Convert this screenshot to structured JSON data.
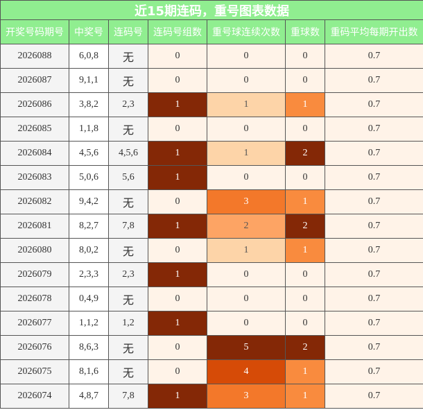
{
  "title": "近15期连码，重号图表数据",
  "table": {
    "headers": [
      "开奖号码期号",
      "中奖号",
      "连码号",
      "连码号组数",
      "重号球连续次数",
      "重球数",
      "重码平均每期开出数"
    ],
    "rows": [
      [
        "2026088",
        "6,0,8",
        "无",
        "0",
        "0",
        "0",
        "0.7"
      ],
      [
        "2026087",
        "9,1,1",
        "无",
        "0",
        "0",
        "0",
        "0.7"
      ],
      [
        "2026086",
        "3,8,2",
        "2,3",
        "1",
        "1",
        "1",
        "0.7"
      ],
      [
        "2026085",
        "1,1,8",
        "无",
        "0",
        "0",
        "0",
        "0.7"
      ],
      [
        "2026084",
        "4,5,6",
        "4,5,6",
        "1",
        "1",
        "2",
        "0.7"
      ],
      [
        "2026083",
        "5,0,6",
        "5,6",
        "1",
        "0",
        "0",
        "0.7"
      ],
      [
        "2026082",
        "9,4,2",
        "无",
        "0",
        "3",
        "1",
        "0.7"
      ],
      [
        "2026081",
        "8,2,7",
        "7,8",
        "1",
        "2",
        "2",
        "0.7"
      ],
      [
        "2026080",
        "8,0,2",
        "无",
        "0",
        "1",
        "1",
        "0.7"
      ],
      [
        "2026079",
        "2,3,3",
        "2,3",
        "1",
        "0",
        "0",
        "0.7"
      ],
      [
        "2026078",
        "0,4,9",
        "无",
        "0",
        "0",
        "0",
        "0.7"
      ],
      [
        "2026077",
        "1,1,2",
        "1,2",
        "1",
        "0",
        "0",
        "0.7"
      ],
      [
        "2026076",
        "8,6,3",
        "无",
        "0",
        "5",
        "2",
        "0.7"
      ],
      [
        "2026075",
        "8,1,6",
        "无",
        "0",
        "4",
        "1",
        "0.7"
      ],
      [
        "2026074",
        "4,8,7",
        "7,8",
        "1",
        "3",
        "1",
        "0.7"
      ]
    ]
  }
}
